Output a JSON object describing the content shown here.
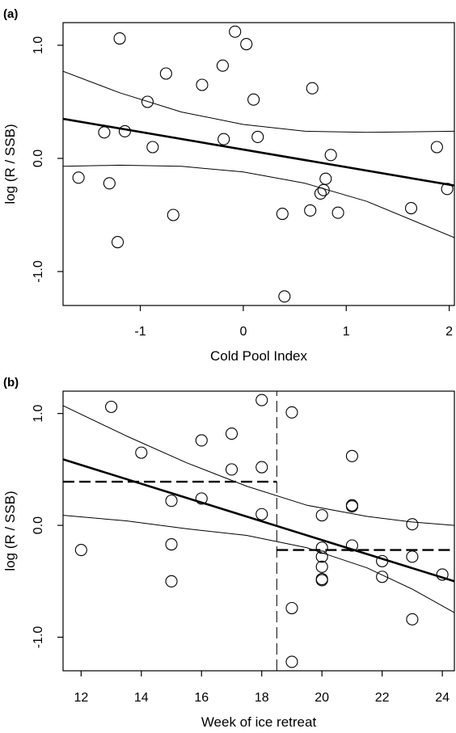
{
  "chart_data": [
    {
      "panel": "(a)",
      "type": "scatter",
      "xlabel": "Cold Pool Index",
      "ylabel": "log (R / SSB)",
      "xlim": [
        -1.75,
        2.05
      ],
      "ylim": [
        -1.3,
        1.2
      ],
      "xticks": [
        -1,
        0,
        1,
        2
      ],
      "xtick_labels": [
        "-1",
        "0",
        "1",
        "2"
      ],
      "yticks": [
        -1.0,
        0.0,
        1.0
      ],
      "ytick_labels": [
        "-1.0",
        "0.0",
        "1.0"
      ],
      "grid": false,
      "legend": "none",
      "points": [
        {
          "x": -1.6,
          "y": -0.17
        },
        {
          "x": -1.35,
          "y": 0.23
        },
        {
          "x": -1.3,
          "y": -0.22
        },
        {
          "x": -1.22,
          "y": -0.74
        },
        {
          "x": -1.2,
          "y": 1.06
        },
        {
          "x": -1.15,
          "y": 0.24
        },
        {
          "x": -0.93,
          "y": 0.5
        },
        {
          "x": -0.88,
          "y": 0.1
        },
        {
          "x": -0.75,
          "y": 0.75
        },
        {
          "x": -0.68,
          "y": -0.5
        },
        {
          "x": -0.4,
          "y": 0.65
        },
        {
          "x": -0.2,
          "y": 0.82
        },
        {
          "x": -0.19,
          "y": 0.17
        },
        {
          "x": -0.08,
          "y": 1.12
        },
        {
          "x": 0.03,
          "y": 1.01
        },
        {
          "x": 0.1,
          "y": 0.52
        },
        {
          "x": 0.14,
          "y": 0.19
        },
        {
          "x": 0.38,
          "y": -0.49
        },
        {
          "x": 0.4,
          "y": -1.22
        },
        {
          "x": 0.65,
          "y": -0.46
        },
        {
          "x": 0.67,
          "y": 0.62
        },
        {
          "x": 0.75,
          "y": -0.31
        },
        {
          "x": 0.78,
          "y": -0.28
        },
        {
          "x": 0.8,
          "y": -0.18
        },
        {
          "x": 0.85,
          "y": 0.03
        },
        {
          "x": 0.92,
          "y": -0.48
        },
        {
          "x": 1.63,
          "y": -0.44
        },
        {
          "x": 1.88,
          "y": 0.1
        },
        {
          "x": 1.98,
          "y": -0.27
        }
      ],
      "lines": [
        {
          "role": "fit",
          "style": "solid-thick",
          "x": [
            -1.75,
            2.05
          ],
          "y": [
            0.35,
            -0.24
          ]
        },
        {
          "role": "upper-ci",
          "style": "solid-thin",
          "x": [
            -1.75,
            -1.2,
            -0.6,
            0.0,
            0.6,
            1.2,
            2.05
          ],
          "y": [
            0.77,
            0.58,
            0.41,
            0.3,
            0.24,
            0.23,
            0.24
          ]
        },
        {
          "role": "lower-ci",
          "style": "solid-thin",
          "x": [
            -1.75,
            -1.2,
            -0.6,
            0.0,
            0.6,
            1.2,
            2.05
          ],
          "y": [
            -0.07,
            -0.06,
            -0.07,
            -0.12,
            -0.22,
            -0.38,
            -0.7
          ]
        }
      ]
    },
    {
      "panel": "(b)",
      "type": "scatter",
      "xlabel": "Week of ice retreat",
      "ylabel": "log (R / SSB)",
      "xlim": [
        11.4,
        24.4
      ],
      "ylim": [
        -1.3,
        1.2
      ],
      "xticks": [
        12,
        14,
        16,
        18,
        20,
        22,
        24
      ],
      "xtick_labels": [
        "12",
        "14",
        "16",
        "18",
        "20",
        "22",
        "24"
      ],
      "yticks": [
        -1.0,
        0.0,
        1.0
      ],
      "ytick_labels": [
        "-1.0",
        "0.0",
        "1.0"
      ],
      "grid": false,
      "legend": "none",
      "points": [
        {
          "x": 12,
          "y": -0.22
        },
        {
          "x": 13,
          "y": 1.06
        },
        {
          "x": 14,
          "y": 0.65
        },
        {
          "x": 15,
          "y": 0.22
        },
        {
          "x": 15,
          "y": -0.17
        },
        {
          "x": 15,
          "y": -0.5
        },
        {
          "x": 16,
          "y": 0.76
        },
        {
          "x": 16,
          "y": 0.24
        },
        {
          "x": 17,
          "y": 0.82
        },
        {
          "x": 17,
          "y": 0.5
        },
        {
          "x": 18,
          "y": 1.12
        },
        {
          "x": 18,
          "y": 0.52
        },
        {
          "x": 18,
          "y": 0.1
        },
        {
          "x": 19,
          "y": 1.01
        },
        {
          "x": 19,
          "y": -0.74
        },
        {
          "x": 19,
          "y": -1.22
        },
        {
          "x": 20,
          "y": 0.09
        },
        {
          "x": 20,
          "y": -0.2
        },
        {
          "x": 20,
          "y": -0.28
        },
        {
          "x": 20,
          "y": -0.37
        },
        {
          "x": 20,
          "y": -0.48
        },
        {
          "x": 20,
          "y": -0.49
        },
        {
          "x": 21,
          "y": 0.62
        },
        {
          "x": 21,
          "y": 0.17
        },
        {
          "x": 21,
          "y": 0.18
        },
        {
          "x": 21,
          "y": -0.18
        },
        {
          "x": 22,
          "y": -0.32
        },
        {
          "x": 22,
          "y": -0.46
        },
        {
          "x": 23,
          "y": 0.01
        },
        {
          "x": 23,
          "y": -0.28
        },
        {
          "x": 23,
          "y": -0.84
        },
        {
          "x": 24,
          "y": -0.44
        }
      ],
      "lines": [
        {
          "role": "fit",
          "style": "solid-thick",
          "x": [
            11.4,
            24.4
          ],
          "y": [
            0.59,
            -0.5
          ]
        },
        {
          "role": "upper-ci",
          "style": "solid-thin",
          "x": [
            11.4,
            13.5,
            15.5,
            17.5,
            19.5,
            21.5,
            23.0,
            24.4
          ],
          "y": [
            1.07,
            0.8,
            0.56,
            0.35,
            0.18,
            0.08,
            0.03,
            0.0
          ]
        },
        {
          "role": "lower-ci",
          "style": "solid-thin",
          "x": [
            11.4,
            13.5,
            15.5,
            17.5,
            19.5,
            21.5,
            23.0,
            24.4
          ],
          "y": [
            0.09,
            0.04,
            -0.03,
            -0.09,
            -0.2,
            -0.38,
            -0.57,
            -0.78
          ]
        },
        {
          "role": "mean-before",
          "style": "dashed-thick",
          "x": [
            11.4,
            18.5
          ],
          "y": [
            0.39,
            0.39
          ]
        },
        {
          "role": "mean-after",
          "style": "dashed-thick",
          "x": [
            18.5,
            24.4
          ],
          "y": [
            -0.22,
            -0.22
          ]
        },
        {
          "role": "breakpoint",
          "style": "dashed-thin",
          "x": [
            18.5,
            18.5
          ],
          "y": [
            -1.3,
            1.2
          ]
        }
      ]
    }
  ]
}
